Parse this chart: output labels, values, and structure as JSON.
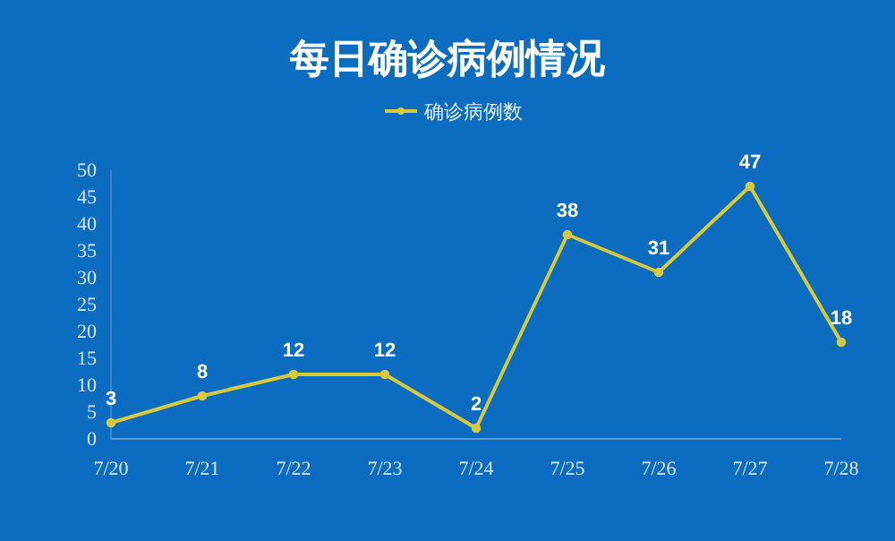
{
  "chart_data": {
    "type": "line",
    "title": "每日确诊病例情况",
    "categories": [
      "7/20",
      "7/21",
      "7/22",
      "7/23",
      "7/24",
      "7/25",
      "7/26",
      "7/27",
      "7/28"
    ],
    "series": [
      {
        "name": "确诊病例数",
        "color": "#d8c83c",
        "values": [
          3,
          8,
          12,
          12,
          2,
          38,
          31,
          47,
          18
        ]
      }
    ],
    "ylim": [
      0,
      50
    ],
    "yticks": [
      0,
      5,
      10,
      15,
      20,
      25,
      30,
      35,
      40,
      45,
      50
    ],
    "grid": false,
    "legend": "top",
    "marker": "circle",
    "line_style": "solid",
    "data_labels": true
  }
}
